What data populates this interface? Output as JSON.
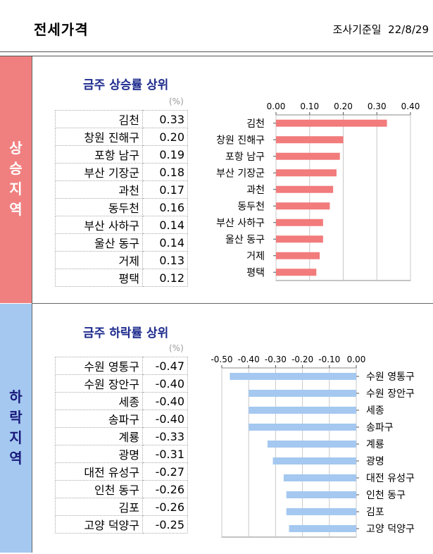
{
  "header": {
    "title": "전세가격",
    "date_label": "조사기준일",
    "date": "22/8/29"
  },
  "sections": {
    "rise": {
      "side_label": "상승지역",
      "title": "금주 상승률 상위",
      "unit": "(%)"
    },
    "fall": {
      "side_label": "하락지역",
      "title": "금주 하락률 상위",
      "unit": "(%)"
    }
  },
  "chart_data": [
    {
      "type": "bar",
      "orientation": "horizontal",
      "categories": [
        "김천",
        "창원 진해구",
        "포항 남구",
        "부산 기장군",
        "과천",
        "동두천",
        "부산 사하구",
        "울산 동구",
        "거제",
        "평택"
      ],
      "values": [
        0.33,
        0.2,
        0.19,
        0.18,
        0.17,
        0.16,
        0.14,
        0.14,
        0.13,
        0.12
      ],
      "value_labels": [
        "0.33",
        "0.20",
        "0.19",
        "0.18",
        "0.17",
        "0.16",
        "0.14",
        "0.14",
        "0.13",
        "0.12"
      ],
      "xlim": [
        0,
        0.4
      ],
      "xticks": [
        "0.00",
        "0.10",
        "0.20",
        "0.30",
        "0.40"
      ],
      "xtick_values": [
        0,
        0.1,
        0.2,
        0.3,
        0.4
      ],
      "axis_position": "top",
      "grid": true,
      "color": "#f27b7b"
    },
    {
      "type": "bar",
      "orientation": "horizontal",
      "categories": [
        "수원 영통구",
        "수원 장안구",
        "세종",
        "송파구",
        "계룡",
        "광명",
        "대전 유성구",
        "인천 동구",
        "김포",
        "고양 덕양구"
      ],
      "values": [
        -0.47,
        -0.4,
        -0.4,
        -0.4,
        -0.33,
        -0.31,
        -0.27,
        -0.26,
        -0.26,
        -0.25
      ],
      "value_labels": [
        "-0.47",
        "-0.40",
        "-0.40",
        "-0.40",
        "-0.33",
        "-0.31",
        "-0.27",
        "-0.26",
        "-0.26",
        "-0.25"
      ],
      "xlim": [
        -0.5,
        0
      ],
      "xticks": [
        "-0.50",
        "-0.40",
        "-0.30",
        "-0.20",
        "-0.10",
        "0.00"
      ],
      "xtick_values": [
        -0.5,
        -0.4,
        -0.3,
        -0.2,
        -0.1,
        0
      ],
      "axis_position": "top",
      "grid": true,
      "color": "#a4c8f0"
    }
  ]
}
